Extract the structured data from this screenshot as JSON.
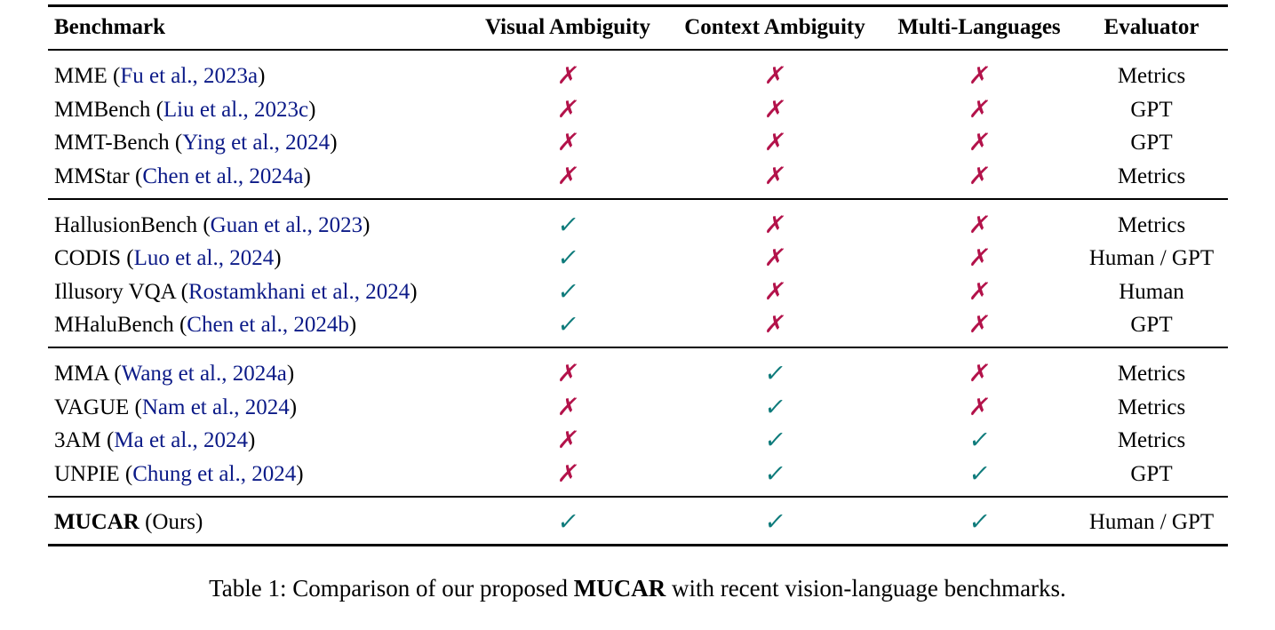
{
  "table": {
    "headers": {
      "benchmark": "Benchmark",
      "visual": "Visual Ambiguity",
      "context": "Context Ambiguity",
      "multilang": "Multi-Languages",
      "evaluator": "Evaluator"
    },
    "rows": [
      {
        "name": "MME",
        "cite": "Fu et al., 2023a",
        "visual": "✗",
        "context": "✗",
        "multilang": "✗",
        "evaluator": "Metrics"
      },
      {
        "name": "MMBench",
        "cite": "Liu et al., 2023c",
        "visual": "✗",
        "context": "✗",
        "multilang": "✗",
        "evaluator": "GPT"
      },
      {
        "name": "MMT-Bench",
        "cite": "Ying et al., 2024",
        "visual": "✗",
        "context": "✗",
        "multilang": "✗",
        "evaluator": "GPT"
      },
      {
        "name": "MMStar",
        "cite": "Chen et al., 2024a",
        "visual": "✗",
        "context": "✗",
        "multilang": "✗",
        "evaluator": "Metrics"
      },
      {
        "name": "HallusionBench",
        "cite": "Guan et al., 2023",
        "visual": "✓",
        "context": "✗",
        "multilang": "✗",
        "evaluator": "Metrics"
      },
      {
        "name": "CODIS",
        "cite": "Luo et al., 2024",
        "visual": "✓",
        "context": "✗",
        "multilang": "✗",
        "evaluator": "Human / GPT"
      },
      {
        "name": "Illusory VQA",
        "cite": "Rostamkhani et al., 2024",
        "visual": "✓",
        "context": "✗",
        "multilang": "✗",
        "evaluator": "Human"
      },
      {
        "name": "MHaluBench",
        "cite": "Chen et al., 2024b",
        "visual": "✓",
        "context": "✗",
        "multilang": "✗",
        "evaluator": "GPT"
      },
      {
        "name": "MMA",
        "cite": "Wang et al., 2024a",
        "visual": "✗",
        "context": "✓",
        "multilang": "✗",
        "evaluator": "Metrics"
      },
      {
        "name": "VAGUE",
        "cite": "Nam et al., 2024",
        "visual": "✗",
        "context": "✓",
        "multilang": "✗",
        "evaluator": "Metrics"
      },
      {
        "name": "3AM",
        "cite": "Ma et al., 2024",
        "visual": "✗",
        "context": "✓",
        "multilang": "✓",
        "evaluator": "Metrics"
      },
      {
        "name": "UNPIE",
        "cite": "Chung et al., 2024",
        "visual": "✗",
        "context": "✓",
        "multilang": "✓",
        "evaluator": "GPT"
      }
    ],
    "ours": {
      "name": "MUCAR",
      "suffix": "(Ours)",
      "visual": "✓",
      "context": "✓",
      "multilang": "✓",
      "evaluator": "Human / GPT"
    },
    "colors": {
      "check": "#0e7b7b",
      "cross": "#b3124a",
      "citation": "#0b1a87"
    }
  },
  "caption": {
    "prefix": "Table 1: Comparison of our proposed ",
    "bold": "MUCAR",
    "suffix": " with recent vision-language benchmarks."
  }
}
